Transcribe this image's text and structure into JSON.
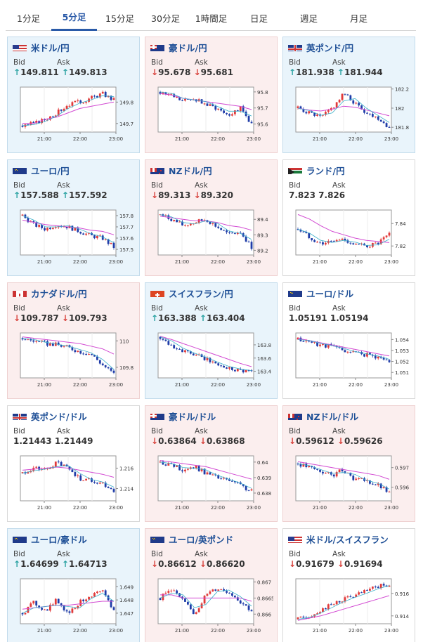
{
  "tabs": [
    "1分足",
    "5分足",
    "15分足",
    "30分足",
    "1時間足",
    "日足",
    "週足",
    "月足"
  ],
  "active_tab": 1,
  "x_ticks": [
    "21:00",
    "22:00",
    "23:00"
  ],
  "bid_label": "Bid",
  "ask_label": "Ask",
  "colors": {
    "up": "#e23a3a",
    "down": "#1f3ca8",
    "ma_fast": "#3bb0c9",
    "ma_slow": "#d24ad2"
  },
  "cards": [
    {
      "pair": "米ドル/円",
      "flag": "us",
      "dir": "up",
      "bid": "149.811",
      "ask": "149.813",
      "bid_arrow": "↑",
      "ask_arrow": "↑",
      "chart_data": {
        "type": "candlestick",
        "yticks": [
          "149.8",
          "149.7"
        ],
        "ylim": [
          149.66,
          149.87
        ],
        "trend": [
          149.69,
          149.7,
          149.72,
          149.75,
          149.79,
          149.8,
          149.82,
          149.84,
          149.81
        ],
        "ma": [
          149.7,
          149.7,
          149.72,
          149.73,
          149.75,
          149.77,
          149.78,
          149.79,
          149.8
        ]
      }
    },
    {
      "pair": "豪ドル/円",
      "flag": "au",
      "dir": "down",
      "bid": "95.678",
      "ask": "95.681",
      "bid_arrow": "↓",
      "ask_arrow": "↓",
      "chart_data": {
        "type": "candlestick",
        "yticks": [
          "95.8",
          "95.7",
          "95.6"
        ],
        "ylim": [
          95.55,
          95.83
        ],
        "trend": [
          95.8,
          95.78,
          95.74,
          95.76,
          95.72,
          95.7,
          95.66,
          95.7,
          95.6
        ],
        "ma": [
          95.79,
          95.78,
          95.76,
          95.75,
          95.74,
          95.73,
          95.72,
          95.71,
          95.69
        ]
      }
    },
    {
      "pair": "英ポンド/円",
      "flag": "gb",
      "dir": "up",
      "bid": "181.938",
      "ask": "181.944",
      "bid_arrow": "↑",
      "ask_arrow": "↑",
      "chart_data": {
        "type": "candlestick",
        "yticks": [
          "182.2",
          "182",
          "181.8"
        ],
        "ylim": [
          181.75,
          182.22
        ],
        "trend": [
          182.0,
          181.95,
          181.9,
          182.0,
          182.15,
          182.05,
          181.95,
          181.9,
          181.8
        ],
        "ma": [
          182.0,
          181.98,
          181.97,
          181.99,
          182.02,
          182.01,
          181.98,
          181.95,
          181.92
        ]
      }
    },
    {
      "pair": "ユーロ/円",
      "flag": "eu",
      "dir": "up",
      "bid": "157.588",
      "ask": "157.592",
      "bid_arrow": "↑",
      "ask_arrow": "↑",
      "chart_data": {
        "type": "candlestick",
        "yticks": [
          "157.8",
          "157.7",
          "157.6",
          "157.5"
        ],
        "ylim": [
          157.45,
          157.85
        ],
        "trend": [
          157.8,
          157.72,
          157.68,
          157.72,
          157.7,
          157.66,
          157.62,
          157.6,
          157.52
        ],
        "ma": [
          157.76,
          157.74,
          157.72,
          157.71,
          157.7,
          157.69,
          157.67,
          157.66,
          157.63
        ]
      }
    },
    {
      "pair": "NZドル/円",
      "flag": "nz",
      "dir": "down",
      "bid": "89.313",
      "ask": "89.320",
      "bid_arrow": "↓",
      "ask_arrow": "↓",
      "chart_data": {
        "type": "candlestick",
        "yticks": [
          "89.4",
          "89.3",
          "89.2"
        ],
        "ylim": [
          89.17,
          89.46
        ],
        "trend": [
          89.43,
          89.4,
          89.36,
          89.38,
          89.4,
          89.35,
          89.3,
          89.32,
          89.22
        ],
        "ma": [
          89.42,
          89.41,
          89.4,
          89.39,
          89.39,
          89.38,
          89.36,
          89.35,
          89.33
        ]
      }
    },
    {
      "pair": "ランド/円",
      "flag": "za",
      "dir": "flat",
      "bid": "7.823",
      "ask": "7.826",
      "bid_arrow": "",
      "ask_arrow": "",
      "chart_data": {
        "type": "candlestick",
        "yticks": [
          "7.84",
          "7.82"
        ],
        "ylim": [
          7.812,
          7.852
        ],
        "trend": [
          7.835,
          7.828,
          7.822,
          7.824,
          7.826,
          7.821,
          7.82,
          7.822,
          7.83
        ],
        "ma": [
          7.848,
          7.844,
          7.838,
          7.833,
          7.83,
          7.827,
          7.825,
          7.824,
          7.823
        ]
      }
    },
    {
      "pair": "カナダドル/円",
      "flag": "ca",
      "dir": "down",
      "bid": "109.787",
      "ask": "109.793",
      "bid_arrow": "↓",
      "ask_arrow": "↓",
      "chart_data": {
        "type": "candlestick",
        "yticks": [
          "110",
          "109.8"
        ],
        "ylim": [
          109.72,
          110.06
        ],
        "trend": [
          110.02,
          110.0,
          109.98,
          109.97,
          109.95,
          109.92,
          109.9,
          109.82,
          109.75
        ],
        "ma": [
          110.03,
          110.02,
          110.01,
          110.0,
          109.99,
          109.98,
          109.96,
          109.94,
          109.9
        ]
      }
    },
    {
      "pair": "スイスフラン/円",
      "flag": "ch",
      "dir": "up",
      "bid": "163.388",
      "ask": "163.404",
      "bid_arrow": "↑",
      "ask_arrow": "↑",
      "chart_data": {
        "type": "candlestick",
        "yticks": [
          "163.8",
          "163.6",
          "163.4"
        ],
        "ylim": [
          163.3,
          163.98
        ],
        "trend": [
          163.92,
          163.8,
          163.7,
          163.65,
          163.58,
          163.5,
          163.45,
          163.42,
          163.4
        ],
        "ma": [
          163.93,
          163.88,
          163.82,
          163.76,
          163.7,
          163.64,
          163.58,
          163.52,
          163.47
        ]
      }
    },
    {
      "pair": "ユーロ/ドル",
      "flag": "eu",
      "dir": "flat",
      "bid": "1.05191",
      "ask": "1.05194",
      "bid_arrow": "",
      "ask_arrow": "",
      "chart_data": {
        "type": "candlestick",
        "yticks": [
          "1.054",
          "1.053",
          "1.052",
          "1.051"
        ],
        "ylim": [
          1.0505,
          1.0546
        ],
        "trend": [
          1.054,
          1.0538,
          1.0535,
          1.0534,
          1.053,
          1.0528,
          1.0526,
          1.0524,
          1.052
        ],
        "ma": [
          1.0541,
          1.0539,
          1.0537,
          1.0535,
          1.0533,
          1.0531,
          1.0529,
          1.0527,
          1.0525
        ]
      }
    },
    {
      "pair": "英ポンド/ドル",
      "flag": "gb",
      "dir": "flat",
      "bid": "1.21443",
      "ask": "1.21449",
      "bid_arrow": "",
      "ask_arrow": "",
      "chart_data": {
        "type": "candlestick",
        "yticks": [
          "1.216",
          "1.214"
        ],
        "ylim": [
          1.2128,
          1.2172
        ],
        "trend": [
          1.2155,
          1.216,
          1.2158,
          1.2165,
          1.216,
          1.215,
          1.2148,
          1.2145,
          1.2138
        ],
        "ma": [
          1.2158,
          1.2159,
          1.216,
          1.2161,
          1.216,
          1.2158,
          1.2156,
          1.2154,
          1.2151
        ]
      }
    },
    {
      "pair": "豪ドル/ドル",
      "flag": "au",
      "dir": "down",
      "bid": "0.63864",
      "ask": "0.63868",
      "bid_arrow": "↓",
      "ask_arrow": "↓",
      "chart_data": {
        "type": "candlestick",
        "yticks": [
          "0.64",
          "0.639",
          "0.638"
        ],
        "ylim": [
          0.6375,
          0.6404
        ],
        "trend": [
          0.64,
          0.6398,
          0.6395,
          0.6397,
          0.6393,
          0.639,
          0.6388,
          0.6385,
          0.6381
        ],
        "ma": [
          0.6401,
          0.64,
          0.6399,
          0.6398,
          0.6397,
          0.6395,
          0.6393,
          0.6391,
          0.6389
        ]
      }
    },
    {
      "pair": "NZドル/ドル",
      "flag": "nz",
      "dir": "down",
      "bid": "0.59612",
      "ask": "0.59626",
      "bid_arrow": "↓",
      "ask_arrow": "↓",
      "chart_data": {
        "type": "candlestick",
        "yticks": [
          "0.597",
          "0.596"
        ],
        "ylim": [
          0.5953,
          0.5976
        ],
        "trend": [
          0.5972,
          0.597,
          0.5968,
          0.5966,
          0.5969,
          0.5964,
          0.5963,
          0.5961,
          0.5957
        ],
        "ma": [
          0.5973,
          0.5972,
          0.5971,
          0.597,
          0.5969,
          0.5968,
          0.5967,
          0.5966,
          0.5964
        ]
      }
    },
    {
      "pair": "ユーロ/豪ドル",
      "flag": "eu",
      "dir": "up",
      "bid": "1.64699",
      "ask": "1.64713",
      "bid_arrow": "↑",
      "ask_arrow": "↑",
      "chart_data": {
        "type": "candlestick",
        "yticks": [
          "1.649",
          "1.648",
          "1.647"
        ],
        "ylim": [
          1.6462,
          1.6496
        ],
        "trend": [
          1.647,
          1.6478,
          1.6472,
          1.648,
          1.647,
          1.6478,
          1.6484,
          1.6486,
          1.6472
        ],
        "ma": [
          1.6473,
          1.6474,
          1.6475,
          1.6476,
          1.6476,
          1.6477,
          1.6478,
          1.6479,
          1.6479
        ]
      }
    },
    {
      "pair": "ユーロ/英ポンド",
      "flag": "eu",
      "dir": "down",
      "bid": "0.86612",
      "ask": "0.86620",
      "bid_arrow": "↓",
      "ask_arrow": "↓",
      "chart_data": {
        "type": "candlestick",
        "yticks": [
          "0.867",
          "0.8665",
          "0.866"
        ],
        "ylim": [
          0.8657,
          0.8671
        ],
        "trend": [
          0.8665,
          0.8668,
          0.8664,
          0.866,
          0.8666,
          0.8668,
          0.8667,
          0.8664,
          0.8661
        ],
        "ma": [
          0.8666,
          0.8666,
          0.8665,
          0.8665,
          0.8665,
          0.8665,
          0.8665,
          0.8665,
          0.8664
        ]
      }
    },
    {
      "pair": "米ドル/スイスフラン",
      "flag": "usch",
      "dir": "flat",
      "bid": "0.91679",
      "ask": "0.91694",
      "bid_arrow": "↓",
      "ask_arrow": "↓",
      "chart_data": {
        "type": "candlestick",
        "yticks": [
          "0.916",
          "0.914"
        ],
        "ylim": [
          0.9133,
          0.9173
        ],
        "trend": [
          0.9137,
          0.914,
          0.9145,
          0.915,
          0.9155,
          0.9158,
          0.9162,
          0.9166,
          0.9168
        ],
        "ma": [
          0.9136,
          0.9138,
          0.914,
          0.9143,
          0.9146,
          0.9149,
          0.9152,
          0.9155,
          0.9158
        ]
      }
    }
  ]
}
